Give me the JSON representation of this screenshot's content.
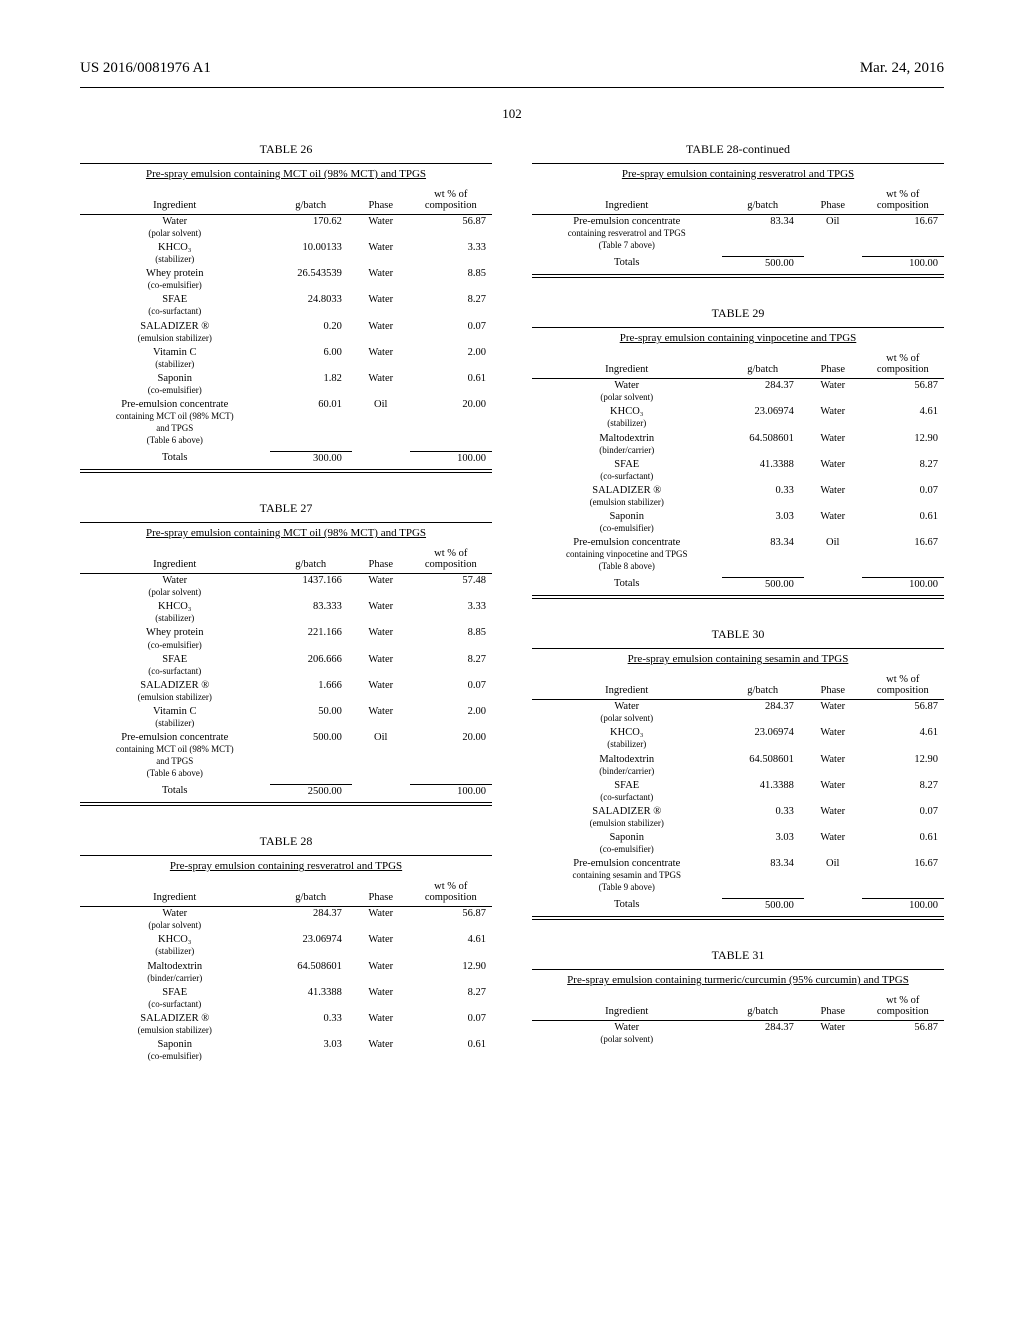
{
  "header": {
    "left": "US 2016/0081976 A1",
    "right": "Mar. 24, 2016"
  },
  "page_number": "102",
  "columns_hdr": {
    "ingredient": "Ingredient",
    "gbatch": "g/batch",
    "phase": "Phase",
    "wt_line1": "wt % of",
    "wt_line2": "composition"
  },
  "tables": {
    "t26": {
      "title": "TABLE 26",
      "subtitle": "Pre-spray emulsion containing MCT oil (98% MCT) and TPGS",
      "rows": [
        {
          "ingredient": "Water",
          "sub": "(polar solvent)",
          "g": "170.62",
          "phase": "Water",
          "wt": "56.87"
        },
        {
          "ingredient": "KHCO₃",
          "sub": "(stabilizer)",
          "g": "10.00133",
          "phase": "Water",
          "wt": "3.33"
        },
        {
          "ingredient": "Whey protein",
          "sub": "(co-emulsifier)",
          "g": "26.543539",
          "phase": "Water",
          "wt": "8.85"
        },
        {
          "ingredient": "SFAE",
          "sub": "(co-surfactant)",
          "g": "24.8033",
          "phase": "Water",
          "wt": "8.27"
        },
        {
          "ingredient": "SALADIZER ®",
          "sub": "(emulsion stabilizer)",
          "g": "0.20",
          "phase": "Water",
          "wt": "0.07"
        },
        {
          "ingredient": "Vitamin C",
          "sub": "(stabilizer)",
          "g": "6.00",
          "phase": "Water",
          "wt": "2.00"
        },
        {
          "ingredient": "Saponin",
          "sub": "(co-emulsifier)",
          "g": "1.82",
          "phase": "Water",
          "wt": "0.61"
        },
        {
          "ingredient": "Pre-emulsion concentrate",
          "sub": "containing MCT oil (98% MCT)\nand TPGS\n(Table 6 above)",
          "g": "60.01",
          "phase": "Oil",
          "wt": "20.00"
        }
      ],
      "totals": {
        "label": "Totals",
        "g": "300.00",
        "wt": "100.00"
      }
    },
    "t27": {
      "title": "TABLE 27",
      "subtitle": "Pre-spray emulsion containing MCT oil (98% MCT) and TPGS",
      "rows": [
        {
          "ingredient": "Water",
          "sub": "(polar solvent)",
          "g": "1437.166",
          "phase": "Water",
          "wt": "57.48"
        },
        {
          "ingredient": "KHCO₃",
          "sub": "(stabilizer)",
          "g": "83.333",
          "phase": "Water",
          "wt": "3.33"
        },
        {
          "ingredient": "Whey protein",
          "sub": "(co-emulsifier)",
          "g": "221.166",
          "phase": "Water",
          "wt": "8.85"
        },
        {
          "ingredient": "SFAE",
          "sub": "(co-surfactant)",
          "g": "206.666",
          "phase": "Water",
          "wt": "8.27"
        },
        {
          "ingredient": "SALADIZER ®",
          "sub": "(emulsion stabilizer)",
          "g": "1.666",
          "phase": "Water",
          "wt": "0.07"
        },
        {
          "ingredient": "Vitamin C",
          "sub": "(stabilizer)",
          "g": "50.00",
          "phase": "Water",
          "wt": "2.00"
        },
        {
          "ingredient": "Pre-emulsion concentrate",
          "sub": "containing MCT oil (98% MCT)\nand TPGS\n(Table 6 above)",
          "g": "500.00",
          "phase": "Oil",
          "wt": "20.00"
        }
      ],
      "totals": {
        "label": "Totals",
        "g": "2500.00",
        "wt": "100.00"
      }
    },
    "t28a": {
      "title": "TABLE 28",
      "subtitle": "Pre-spray emulsion containing resveratrol and TPGS",
      "rows": [
        {
          "ingredient": "Water",
          "sub": "(polar solvent)",
          "g": "284.37",
          "phase": "Water",
          "wt": "56.87"
        },
        {
          "ingredient": "KHCO₃",
          "sub": "(stabilizer)",
          "g": "23.06974",
          "phase": "Water",
          "wt": "4.61"
        },
        {
          "ingredient": "Maltodextrin",
          "sub": "(binder/carrier)",
          "g": "64.508601",
          "phase": "Water",
          "wt": "12.90"
        },
        {
          "ingredient": "SFAE",
          "sub": "(co-surfactant)",
          "g": "41.3388",
          "phase": "Water",
          "wt": "8.27"
        },
        {
          "ingredient": "SALADIZER ®",
          "sub": "(emulsion stabilizer)",
          "g": "0.33",
          "phase": "Water",
          "wt": "0.07"
        },
        {
          "ingredient": "Saponin",
          "sub": "(co-emulsifier)",
          "g": "3.03",
          "phase": "Water",
          "wt": "0.61"
        }
      ]
    },
    "t28b": {
      "title": "TABLE 28-continued",
      "subtitle": "Pre-spray emulsion containing resveratrol and TPGS",
      "rows": [
        {
          "ingredient": "Pre-emulsion concentrate",
          "sub": "containing resveratrol and TPGS\n(Table 7 above)",
          "g": "83.34",
          "phase": "Oil",
          "wt": "16.67"
        }
      ],
      "totals": {
        "label": "Totals",
        "g": "500.00",
        "wt": "100.00"
      }
    },
    "t29": {
      "title": "TABLE 29",
      "subtitle": "Pre-spray emulsion containing vinpocetine and TPGS",
      "rows": [
        {
          "ingredient": "Water",
          "sub": "(polar solvent)",
          "g": "284.37",
          "phase": "Water",
          "wt": "56.87"
        },
        {
          "ingredient": "KHCO₃",
          "sub": "(stabilizer)",
          "g": "23.06974",
          "phase": "Water",
          "wt": "4.61"
        },
        {
          "ingredient": "Maltodextrin",
          "sub": "(binder/carrier)",
          "g": "64.508601",
          "phase": "Water",
          "wt": "12.90"
        },
        {
          "ingredient": "SFAE",
          "sub": "(co-surfactant)",
          "g": "41.3388",
          "phase": "Water",
          "wt": "8.27"
        },
        {
          "ingredient": "SALADIZER ®",
          "sub": "(emulsion stabilizer)",
          "g": "0.33",
          "phase": "Water",
          "wt": "0.07"
        },
        {
          "ingredient": "Saponin",
          "sub": "(co-emulsifier)",
          "g": "3.03",
          "phase": "Water",
          "wt": "0.61"
        },
        {
          "ingredient": "Pre-emulsion concentrate",
          "sub": "containing vinpocetine and TPGS\n(Table 8 above)",
          "g": "83.34",
          "phase": "Oil",
          "wt": "16.67"
        }
      ],
      "totals": {
        "label": "Totals",
        "g": "500.00",
        "wt": "100.00"
      }
    },
    "t30": {
      "title": "TABLE 30",
      "subtitle": "Pre-spray emulsion containing sesamin and TPGS",
      "rows": [
        {
          "ingredient": "Water",
          "sub": "(polar solvent)",
          "g": "284.37",
          "phase": "Water",
          "wt": "56.87"
        },
        {
          "ingredient": "KHCO₃",
          "sub": "(stabilizer)",
          "g": "23.06974",
          "phase": "Water",
          "wt": "4.61"
        },
        {
          "ingredient": "Maltodextrin",
          "sub": "(binder/carrier)",
          "g": "64.508601",
          "phase": "Water",
          "wt": "12.90"
        },
        {
          "ingredient": "SFAE",
          "sub": "(co-surfactant)",
          "g": "41.3388",
          "phase": "Water",
          "wt": "8.27"
        },
        {
          "ingredient": "SALADIZER ®",
          "sub": "(emulsion stabilizer)",
          "g": "0.33",
          "phase": "Water",
          "wt": "0.07"
        },
        {
          "ingredient": "Saponin",
          "sub": "(co-emulsifier)",
          "g": "3.03",
          "phase": "Water",
          "wt": "0.61"
        },
        {
          "ingredient": "Pre-emulsion concentrate",
          "sub": "containing sesamin and TPGS\n(Table 9 above)",
          "g": "83.34",
          "phase": "Oil",
          "wt": "16.67"
        }
      ],
      "totals": {
        "label": "Totals",
        "g": "500.00",
        "wt": "100.00"
      }
    },
    "t31": {
      "title": "TABLE 31",
      "subtitle": "Pre-spray emulsion containing turmeric/curcumin (95% curcumin) and TPGS",
      "rows": [
        {
          "ingredient": "Water",
          "sub": "(polar solvent)",
          "g": "284.37",
          "phase": "Water",
          "wt": "56.87"
        }
      ]
    }
  }
}
